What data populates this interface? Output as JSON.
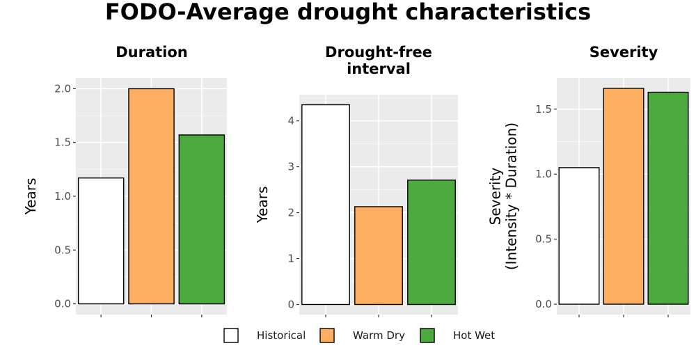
{
  "title": "FODO-Average drought characteristics",
  "legend": {
    "placement": "bottom",
    "items": [
      {
        "label": "Historical",
        "color": "#ffffff"
      },
      {
        "label": "Warm Dry",
        "color": "#fdae61"
      },
      {
        "label": "Hot Wet",
        "color": "#4daa3f"
      }
    ]
  },
  "chart_data": [
    {
      "type": "bar",
      "title": "Duration",
      "title_lines": [
        "Duration"
      ],
      "ylabel": "Years",
      "ylabel_lines": [
        "Years"
      ],
      "xlabel": "",
      "categories": [
        "Historical",
        "Warm Dry",
        "Hot Wet"
      ],
      "values": [
        1.17,
        2.0,
        1.57
      ],
      "colors": [
        "#ffffff",
        "#fdae61",
        "#4daa3f"
      ],
      "ylim": [
        -0.1,
        2.1
      ],
      "yticks": [
        0.0,
        0.5,
        1.0,
        1.5,
        2.0
      ],
      "ytick_labels": [
        "0.0",
        "0.5",
        "1.0",
        "1.5",
        "2.0"
      ],
      "grid": true
    },
    {
      "type": "bar",
      "title": "Drought-free interval",
      "title_lines": [
        "Drought-free",
        "interval"
      ],
      "ylabel": "Years",
      "ylabel_lines": [
        "Years"
      ],
      "xlabel": "",
      "categories": [
        "Historical",
        "Warm Dry",
        "Hot Wet"
      ],
      "values": [
        4.35,
        2.13,
        2.71
      ],
      "colors": [
        "#ffffff",
        "#fdae61",
        "#4daa3f"
      ],
      "ylim": [
        -0.22,
        4.57
      ],
      "yticks": [
        0,
        1,
        2,
        3,
        4
      ],
      "ytick_labels": [
        "0",
        "1",
        "2",
        "3",
        "4"
      ],
      "grid": true
    },
    {
      "type": "bar",
      "title": "Severity",
      "title_lines": [
        "Severity"
      ],
      "ylabel": "Severity (Intensity * Duration)",
      "ylabel_lines": [
        "Severity",
        "(Intensity * Duration)"
      ],
      "xlabel": "",
      "categories": [
        "Historical",
        "Warm Dry",
        "Hot Wet"
      ],
      "values": [
        1.05,
        1.66,
        1.63
      ],
      "colors": [
        "#ffffff",
        "#fdae61",
        "#4daa3f"
      ],
      "ylim": [
        -0.08,
        1.74
      ],
      "yticks": [
        0.0,
        0.5,
        1.0,
        1.5
      ],
      "ytick_labels": [
        "0.0",
        "0.5",
        "1.0",
        "1.5"
      ],
      "grid": true
    }
  ]
}
